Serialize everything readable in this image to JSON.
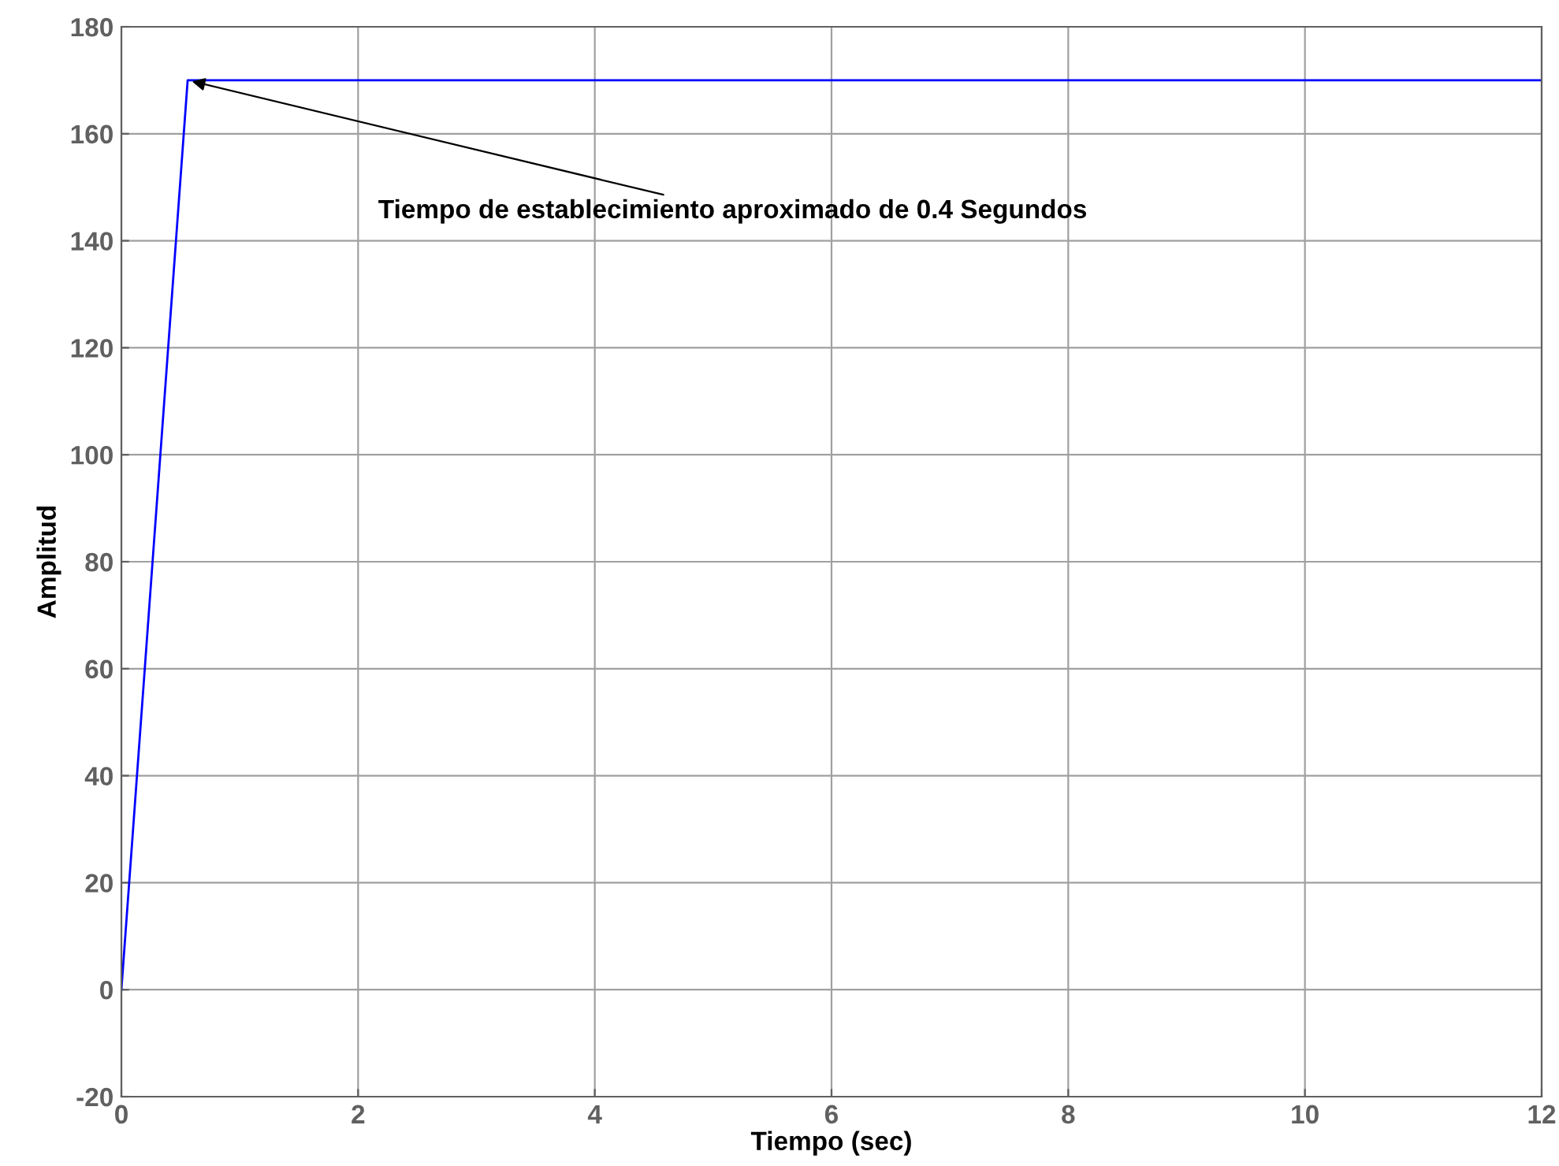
{
  "chart_data": {
    "type": "line",
    "xlabel": "Tiempo (sec)",
    "ylabel": "Amplitud",
    "x": [
      0,
      0.56,
      12
    ],
    "series": [
      {
        "color": "#0000ff",
        "values": [
          0,
          170,
          170
        ]
      }
    ],
    "xlim": [
      0,
      12
    ],
    "xticks": [
      0,
      2,
      4,
      6,
      8,
      10,
      12
    ],
    "ylim": [
      -20,
      180
    ],
    "yticks": [
      -20,
      0,
      20,
      40,
      60,
      80,
      100,
      120,
      140,
      160,
      180
    ],
    "grid": true,
    "marker": "none",
    "line_style": "solid",
    "annotations": [
      {
        "text": "Tiempo de establecimiento aproximado de 0.4 Segundos",
        "x": 0.56,
        "y": 170
      }
    ]
  }
}
